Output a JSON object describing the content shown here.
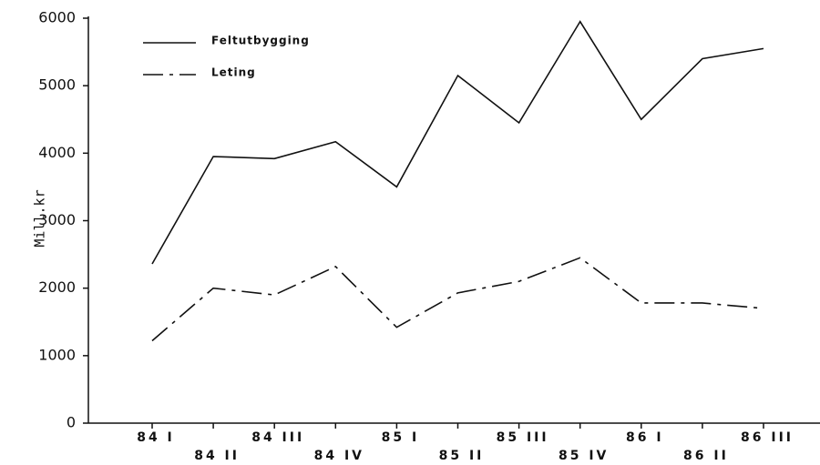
{
  "chart_data": {
    "type": "line",
    "y_label": "Mill.kr",
    "categories": [
      "84 I",
      "84 II",
      "84 III",
      "84 IV",
      "85 I",
      "85 II",
      "85 III",
      "85 IV",
      "86 I",
      "86 II",
      "86 III"
    ],
    "series": [
      {
        "name": "Feltutbygging",
        "color": "#111111",
        "dash": "solid",
        "values": [
          2360,
          3950,
          3920,
          4170,
          3500,
          5150,
          4450,
          5950,
          4500,
          5400,
          5550
        ]
      },
      {
        "name": "Leting",
        "color": "#111111",
        "dash": "dashed",
        "values": [
          1220,
          2000,
          1900,
          2320,
          1420,
          1930,
          2100,
          2450,
          1780,
          1780,
          1700
        ]
      }
    ],
    "ylim": [
      0,
      6000
    ],
    "yticks": [
      0,
      1000,
      2000,
      3000,
      4000,
      5000,
      6000
    ],
    "legend": "upper left",
    "grid": false
  }
}
